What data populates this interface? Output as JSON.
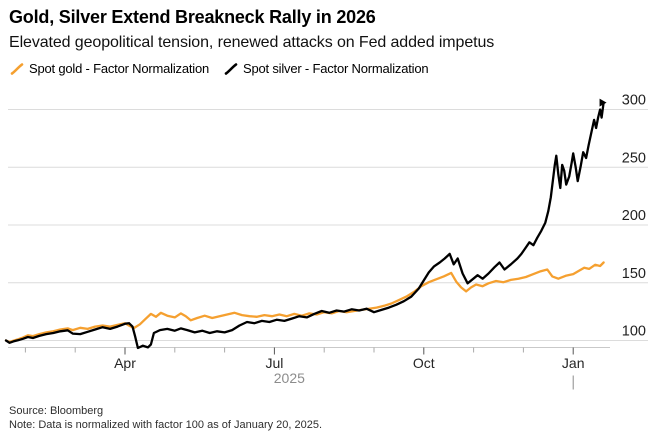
{
  "header": {
    "title": "Gold, Silver Extend Breakneck Rally in 2026",
    "subtitle": "Elevated geopolitical tension, renewed attacks on Fed added impetus"
  },
  "legend": [
    {
      "label": "Spot gold - Factor Normalization",
      "color": "#F5A030"
    },
    {
      "label": "Spot silver - Factor Normalization",
      "color": "#000000"
    }
  ],
  "footer": {
    "source": "Source: Bloomberg",
    "note": "Note: Data is normalized with factor 100 as of January 20, 2025."
  },
  "chart_data": {
    "type": "line",
    "title": "Gold, Silver Extend Breakneck Rally in 2026",
    "x_axis": {
      "unit": "months_since_2025-01-01",
      "range": [
        0.61,
        12.61
      ],
      "month_ticks": [
        1,
        2,
        3,
        4,
        5,
        6,
        7,
        8,
        9,
        10,
        11,
        12
      ],
      "major_ticks": [
        {
          "t": 3,
          "label": "Apr"
        },
        {
          "t": 6,
          "label": "Jul"
        },
        {
          "t": 9,
          "label": "Oct"
        },
        {
          "t": 12,
          "label": "Jan"
        }
      ],
      "year_label": {
        "text": "2025",
        "t_center": 6.3
      },
      "year_divider_t": 12
    },
    "y_axis": {
      "side": "right",
      "ticks": [
        100,
        150,
        200,
        250,
        300
      ],
      "ylim": [
        89,
        312
      ]
    },
    "grid": "horizontal",
    "legend_position": "top",
    "series": [
      {
        "name": "Spot gold - Factor Normalization",
        "color": "#F5A030",
        "end_marker": false,
        "points": [
          [
            0.61,
            100
          ],
          [
            0.68,
            98.6
          ],
          [
            0.76,
            99.8
          ],
          [
            0.85,
            101
          ],
          [
            0.95,
            102.5
          ],
          [
            1.05,
            104.5
          ],
          [
            1.15,
            103.8
          ],
          [
            1.28,
            105.5
          ],
          [
            1.42,
            107
          ],
          [
            1.56,
            108
          ],
          [
            1.7,
            109.5
          ],
          [
            1.85,
            110.5
          ],
          [
            1.95,
            109
          ],
          [
            2.1,
            111
          ],
          [
            2.25,
            110
          ],
          [
            2.4,
            112
          ],
          [
            2.55,
            113
          ],
          [
            2.7,
            112
          ],
          [
            2.85,
            113.5
          ],
          [
            3.0,
            115
          ],
          [
            3.1,
            112.5
          ],
          [
            3.18,
            110.8
          ],
          [
            3.3,
            114
          ],
          [
            3.42,
            119
          ],
          [
            3.52,
            123
          ],
          [
            3.62,
            120.5
          ],
          [
            3.72,
            124
          ],
          [
            3.85,
            121.5
          ],
          [
            4.0,
            120
          ],
          [
            4.12,
            123.5
          ],
          [
            4.22,
            121
          ],
          [
            4.32,
            117.5
          ],
          [
            4.45,
            119.5
          ],
          [
            4.6,
            121.5
          ],
          [
            4.75,
            119.5
          ],
          [
            4.9,
            121
          ],
          [
            5.05,
            122.5
          ],
          [
            5.2,
            124
          ],
          [
            5.35,
            122
          ],
          [
            5.5,
            121
          ],
          [
            5.65,
            120.5
          ],
          [
            5.8,
            122
          ],
          [
            5.95,
            121
          ],
          [
            6.1,
            122.5
          ],
          [
            6.25,
            121
          ],
          [
            6.4,
            123
          ],
          [
            6.55,
            121.5
          ],
          [
            6.7,
            123.5
          ],
          [
            6.85,
            122.5
          ],
          [
            7.0,
            124.5
          ],
          [
            7.15,
            123.5
          ],
          [
            7.3,
            125.5
          ],
          [
            7.45,
            124.5
          ],
          [
            7.6,
            125.5
          ],
          [
            7.75,
            126.5
          ],
          [
            7.9,
            127.5
          ],
          [
            8.05,
            128.5
          ],
          [
            8.2,
            130
          ],
          [
            8.35,
            132
          ],
          [
            8.5,
            135
          ],
          [
            8.65,
            138
          ],
          [
            8.8,
            142
          ],
          [
            8.95,
            147
          ],
          [
            9.1,
            150.5
          ],
          [
            9.25,
            153
          ],
          [
            9.4,
            155.5
          ],
          [
            9.55,
            158.5
          ],
          [
            9.65,
            151
          ],
          [
            9.75,
            146
          ],
          [
            9.85,
            142.5
          ],
          [
            9.95,
            146
          ],
          [
            10.05,
            148.5
          ],
          [
            10.18,
            147
          ],
          [
            10.3,
            149.5
          ],
          [
            10.45,
            151.5
          ],
          [
            10.6,
            150.5
          ],
          [
            10.75,
            152.5
          ],
          [
            10.9,
            153.5
          ],
          [
            11.05,
            155
          ],
          [
            11.2,
            157.5
          ],
          [
            11.35,
            160
          ],
          [
            11.48,
            161.5
          ],
          [
            11.58,
            155.5
          ],
          [
            11.7,
            153.5
          ],
          [
            11.85,
            156
          ],
          [
            12.0,
            157.5
          ],
          [
            12.12,
            160.5
          ],
          [
            12.22,
            163
          ],
          [
            12.32,
            162
          ],
          [
            12.44,
            165.5
          ],
          [
            12.54,
            164.5
          ],
          [
            12.61,
            167.5
          ]
        ]
      },
      {
        "name": "Spot silver - Factor Normalization",
        "color": "#000000",
        "end_marker": true,
        "points": [
          [
            0.61,
            100
          ],
          [
            0.68,
            98
          ],
          [
            0.76,
            99.2
          ],
          [
            0.85,
            100.2
          ],
          [
            0.95,
            101.5
          ],
          [
            1.05,
            103
          ],
          [
            1.15,
            102.2
          ],
          [
            1.28,
            104
          ],
          [
            1.42,
            105.5
          ],
          [
            1.56,
            106.5
          ],
          [
            1.7,
            108
          ],
          [
            1.85,
            108.8
          ],
          [
            1.95,
            106
          ],
          [
            2.1,
            105.5
          ],
          [
            2.25,
            107.5
          ],
          [
            2.4,
            109.5
          ],
          [
            2.55,
            111.5
          ],
          [
            2.7,
            110
          ],
          [
            2.85,
            112
          ],
          [
            3.0,
            114.5
          ],
          [
            3.08,
            115
          ],
          [
            3.15,
            112
          ],
          [
            3.2,
            104
          ],
          [
            3.26,
            93.5
          ],
          [
            3.36,
            95.5
          ],
          [
            3.46,
            94
          ],
          [
            3.52,
            96.5
          ],
          [
            3.58,
            106.5
          ],
          [
            3.7,
            109
          ],
          [
            3.85,
            110
          ],
          [
            4.0,
            108.5
          ],
          [
            4.12,
            110.5
          ],
          [
            4.25,
            109
          ],
          [
            4.4,
            107
          ],
          [
            4.55,
            108.5
          ],
          [
            4.7,
            106.5
          ],
          [
            4.85,
            108
          ],
          [
            5.0,
            107
          ],
          [
            5.15,
            109
          ],
          [
            5.3,
            113
          ],
          [
            5.45,
            116
          ],
          [
            5.6,
            115
          ],
          [
            5.75,
            117
          ],
          [
            5.9,
            116
          ],
          [
            6.05,
            118
          ],
          [
            6.2,
            117
          ],
          [
            6.35,
            119
          ],
          [
            6.5,
            121
          ],
          [
            6.65,
            120
          ],
          [
            6.8,
            123
          ],
          [
            6.95,
            125.5
          ],
          [
            7.1,
            124
          ],
          [
            7.25,
            126
          ],
          [
            7.4,
            125
          ],
          [
            7.55,
            127
          ],
          [
            7.7,
            126
          ],
          [
            7.85,
            127.5
          ],
          [
            8.0,
            124.5
          ],
          [
            8.15,
            126.5
          ],
          [
            8.3,
            128.5
          ],
          [
            8.45,
            131
          ],
          [
            8.6,
            134
          ],
          [
            8.75,
            138
          ],
          [
            8.9,
            145
          ],
          [
            9.0,
            152
          ],
          [
            9.1,
            159
          ],
          [
            9.2,
            164
          ],
          [
            9.32,
            167.5
          ],
          [
            9.42,
            171
          ],
          [
            9.52,
            175
          ],
          [
            9.6,
            166
          ],
          [
            9.68,
            171
          ],
          [
            9.78,
            158
          ],
          [
            9.88,
            149.5
          ],
          [
            9.98,
            153
          ],
          [
            10.08,
            156.5
          ],
          [
            10.18,
            153.5
          ],
          [
            10.3,
            158
          ],
          [
            10.42,
            163.5
          ],
          [
            10.52,
            167.5
          ],
          [
            10.62,
            161.5
          ],
          [
            10.75,
            166
          ],
          [
            10.88,
            171
          ],
          [
            10.96,
            175
          ],
          [
            11.04,
            180
          ],
          [
            11.12,
            185
          ],
          [
            11.2,
            182.5
          ],
          [
            11.28,
            189
          ],
          [
            11.36,
            195
          ],
          [
            11.44,
            202
          ],
          [
            11.5,
            212
          ],
          [
            11.55,
            224
          ],
          [
            11.59,
            238
          ],
          [
            11.63,
            252
          ],
          [
            11.66,
            260
          ],
          [
            11.7,
            244
          ],
          [
            11.74,
            232
          ],
          [
            11.78,
            252
          ],
          [
            11.82,
            247
          ],
          [
            11.86,
            235
          ],
          [
            11.92,
            242
          ],
          [
            11.97,
            254
          ],
          [
            12.0,
            262
          ],
          [
            12.05,
            250
          ],
          [
            12.09,
            238
          ],
          [
            12.15,
            251
          ],
          [
            12.2,
            263
          ],
          [
            12.26,
            258
          ],
          [
            12.31,
            269
          ],
          [
            12.37,
            281
          ],
          [
            12.42,
            291
          ],
          [
            12.46,
            284
          ],
          [
            12.5,
            293
          ],
          [
            12.54,
            300
          ],
          [
            12.57,
            293
          ],
          [
            12.61,
            306
          ]
        ]
      }
    ]
  }
}
